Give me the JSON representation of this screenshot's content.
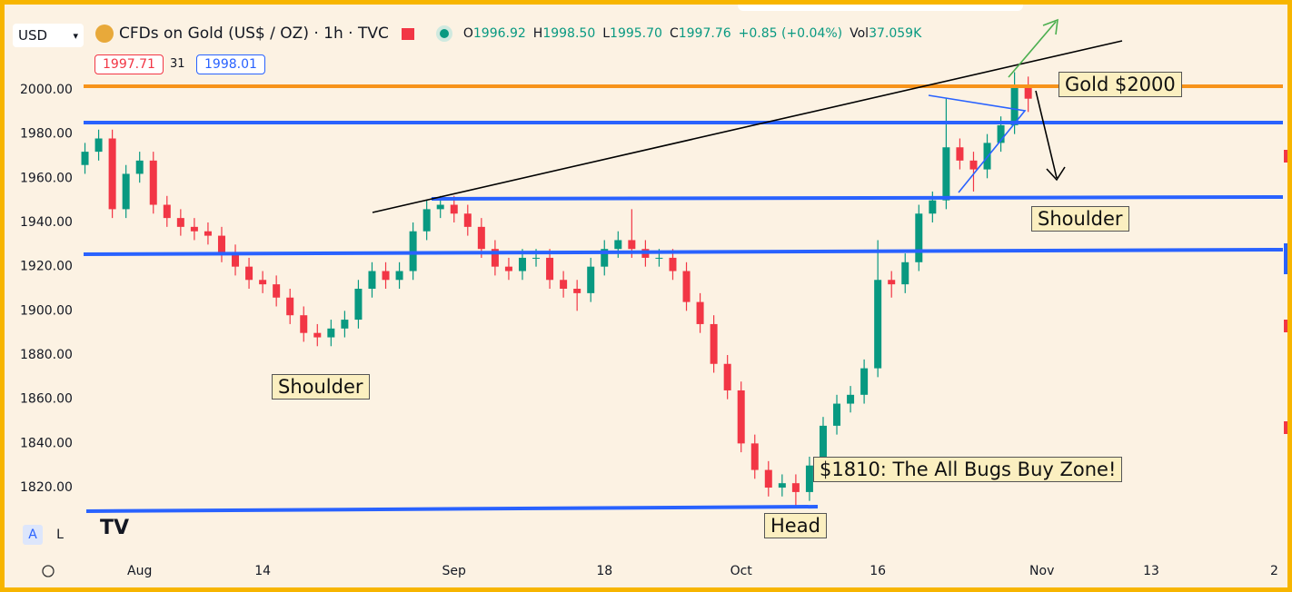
{
  "header": {
    "currency": "USD",
    "symbol": "CFDs on Gold (US$ / OZ) · 1h · TVC",
    "ohlc": [
      {
        "key": "O",
        "value": "1996.92"
      },
      {
        "key": "H",
        "value": "1998.50"
      },
      {
        "key": "L",
        "value": "1995.70"
      },
      {
        "key": "C",
        "value": "1997.76"
      }
    ],
    "change": "+0.85 (+0.04%)",
    "volume_key": "Vol",
    "volume": "37.059K",
    "bid": "1997.71",
    "spread": "31",
    "ask": "1998.01"
  },
  "chart_data": {
    "type": "candlestick",
    "up_color": "#089981",
    "down_color": "#f23645",
    "categories": [
      null,
      null,
      null,
      null,
      "Aug",
      null,
      null,
      null,
      null,
      null,
      null,
      null,
      null,
      "14",
      null,
      null,
      null,
      null,
      null,
      null,
      null,
      null,
      null,
      null,
      null,
      null,
      null,
      "Sep",
      null,
      null,
      null,
      null,
      null,
      null,
      null,
      null,
      null,
      null,
      "18",
      null,
      null,
      null,
      null,
      null,
      null,
      null,
      null,
      null,
      "Oct",
      null,
      null,
      null,
      null,
      null,
      null,
      null,
      null,
      null,
      "16",
      null,
      null,
      null,
      null,
      null,
      null,
      null,
      null,
      null,
      null,
      null,
      "Nov",
      null,
      null,
      null,
      null,
      null,
      null,
      null,
      "13",
      null,
      null,
      null,
      null,
      null,
      null,
      null,
      null,
      "2"
    ],
    "open": [
      1966,
      1972,
      1978,
      1946,
      1962,
      1968,
      1948,
      1942,
      1938,
      1936,
      1934,
      1926,
      1920,
      1914,
      1912,
      1906,
      1898,
      1890,
      1888,
      1892,
      1896,
      1910,
      1918,
      1914,
      1918,
      1936,
      1946,
      1948,
      1944,
      1938,
      1928,
      1920,
      1918,
      1924,
      1924,
      1914,
      1910,
      1908,
      1920,
      1928,
      1932,
      1928,
      1924,
      1924,
      1918,
      1904,
      1894,
      1876,
      1864,
      1840,
      1828,
      1820,
      1822,
      1818,
      1830,
      1848,
      1858,
      1862,
      1874,
      1914,
      1912,
      1922,
      1944,
      1950,
      1974,
      1968,
      1964,
      1976,
      1984,
      2002,
      null,
      null,
      null,
      null,
      null,
      null,
      null,
      null,
      null,
      null,
      null,
      null,
      null,
      null,
      null,
      null,
      null,
      null
    ],
    "high": [
      1976,
      1982,
      1982,
      1966,
      1972,
      1972,
      1952,
      1946,
      1942,
      1940,
      1938,
      1930,
      1924,
      1918,
      1916,
      1910,
      1902,
      1894,
      1896,
      1900,
      1914,
      1922,
      1922,
      1922,
      1940,
      1950,
      1952,
      1952,
      1948,
      1942,
      1932,
      1924,
      1928,
      1928,
      1928,
      1918,
      1914,
      1924,
      1932,
      1936,
      1946,
      1932,
      1928,
      1928,
      1922,
      1908,
      1898,
      1880,
      1868,
      1844,
      1832,
      1826,
      1826,
      1834,
      1852,
      1862,
      1866,
      1878,
      1932,
      1918,
      1926,
      1948,
      1954,
      1996,
      1978,
      1972,
      1980,
      1988,
      2008,
      2006,
      null,
      null,
      null,
      null,
      null,
      null,
      null,
      null,
      null,
      null,
      null,
      null,
      null,
      null,
      null,
      null,
      null,
      null
    ],
    "low": [
      1962,
      1968,
      1942,
      1942,
      1958,
      1944,
      1938,
      1934,
      1932,
      1930,
      1922,
      1916,
      1910,
      1908,
      1902,
      1894,
      1886,
      1884,
      1884,
      1888,
      1892,
      1906,
      1910,
      1910,
      1914,
      1932,
      1942,
      1940,
      1934,
      1924,
      1916,
      1914,
      1914,
      1920,
      1910,
      1906,
      1900,
      1904,
      1916,
      1924,
      1924,
      1920,
      1920,
      1914,
      1900,
      1890,
      1872,
      1860,
      1836,
      1824,
      1816,
      1816,
      1812,
      1814,
      1826,
      1844,
      1854,
      1858,
      1870,
      1906,
      1908,
      1918,
      1940,
      1946,
      1964,
      1954,
      1960,
      1972,
      1980,
      1990,
      null,
      null,
      null,
      null,
      null,
      null,
      null,
      null,
      null,
      null,
      null,
      null,
      null,
      null,
      null,
      null,
      null,
      null
    ],
    "close": [
      1972,
      1978,
      1946,
      1962,
      1968,
      1948,
      1942,
      1938,
      1936,
      1934,
      1926,
      1920,
      1914,
      1912,
      1906,
      1898,
      1890,
      1888,
      1892,
      1896,
      1910,
      1918,
      1914,
      1918,
      1936,
      1946,
      1948,
      1944,
      1938,
      1928,
      1920,
      1918,
      1924,
      1924,
      1914,
      1910,
      1908,
      1920,
      1928,
      1932,
      1928,
      1924,
      1924,
      1918,
      1904,
      1894,
      1876,
      1864,
      1840,
      1828,
      1820,
      1822,
      1818,
      1830,
      1848,
      1858,
      1862,
      1874,
      1914,
      1912,
      1922,
      1944,
      1950,
      1974,
      1968,
      1964,
      1976,
      1984,
      2002,
      1996,
      null,
      null,
      null,
      null,
      null,
      null,
      null,
      null,
      null,
      null,
      null,
      null,
      null,
      null,
      null,
      null,
      null,
      null
    ],
    "ylim": [
      1789.2,
      2034.5
    ],
    "yticks": [
      {
        "value": 1820,
        "label": "1820.00"
      },
      {
        "value": 1840,
        "label": "1840.00"
      },
      {
        "value": 1860,
        "label": "1860.00"
      },
      {
        "value": 1880,
        "label": "1880.00"
      },
      {
        "value": 1900,
        "label": "1900.00"
      },
      {
        "value": 1920,
        "label": "1920.00"
      },
      {
        "value": 1940,
        "label": "1940.00"
      },
      {
        "value": 1960,
        "label": "1960.00"
      },
      {
        "value": 1980,
        "label": "1980.00"
      },
      {
        "value": 2000,
        "label": "2000.00"
      }
    ],
    "grid": false,
    "annotations": [
      "Gold $2000",
      "Shoulder",
      "Shoulder",
      "$1810: The All Bugs Buy Zone!",
      "Head"
    ]
  },
  "toolbar": {
    "auto": "A",
    "log": "L"
  }
}
